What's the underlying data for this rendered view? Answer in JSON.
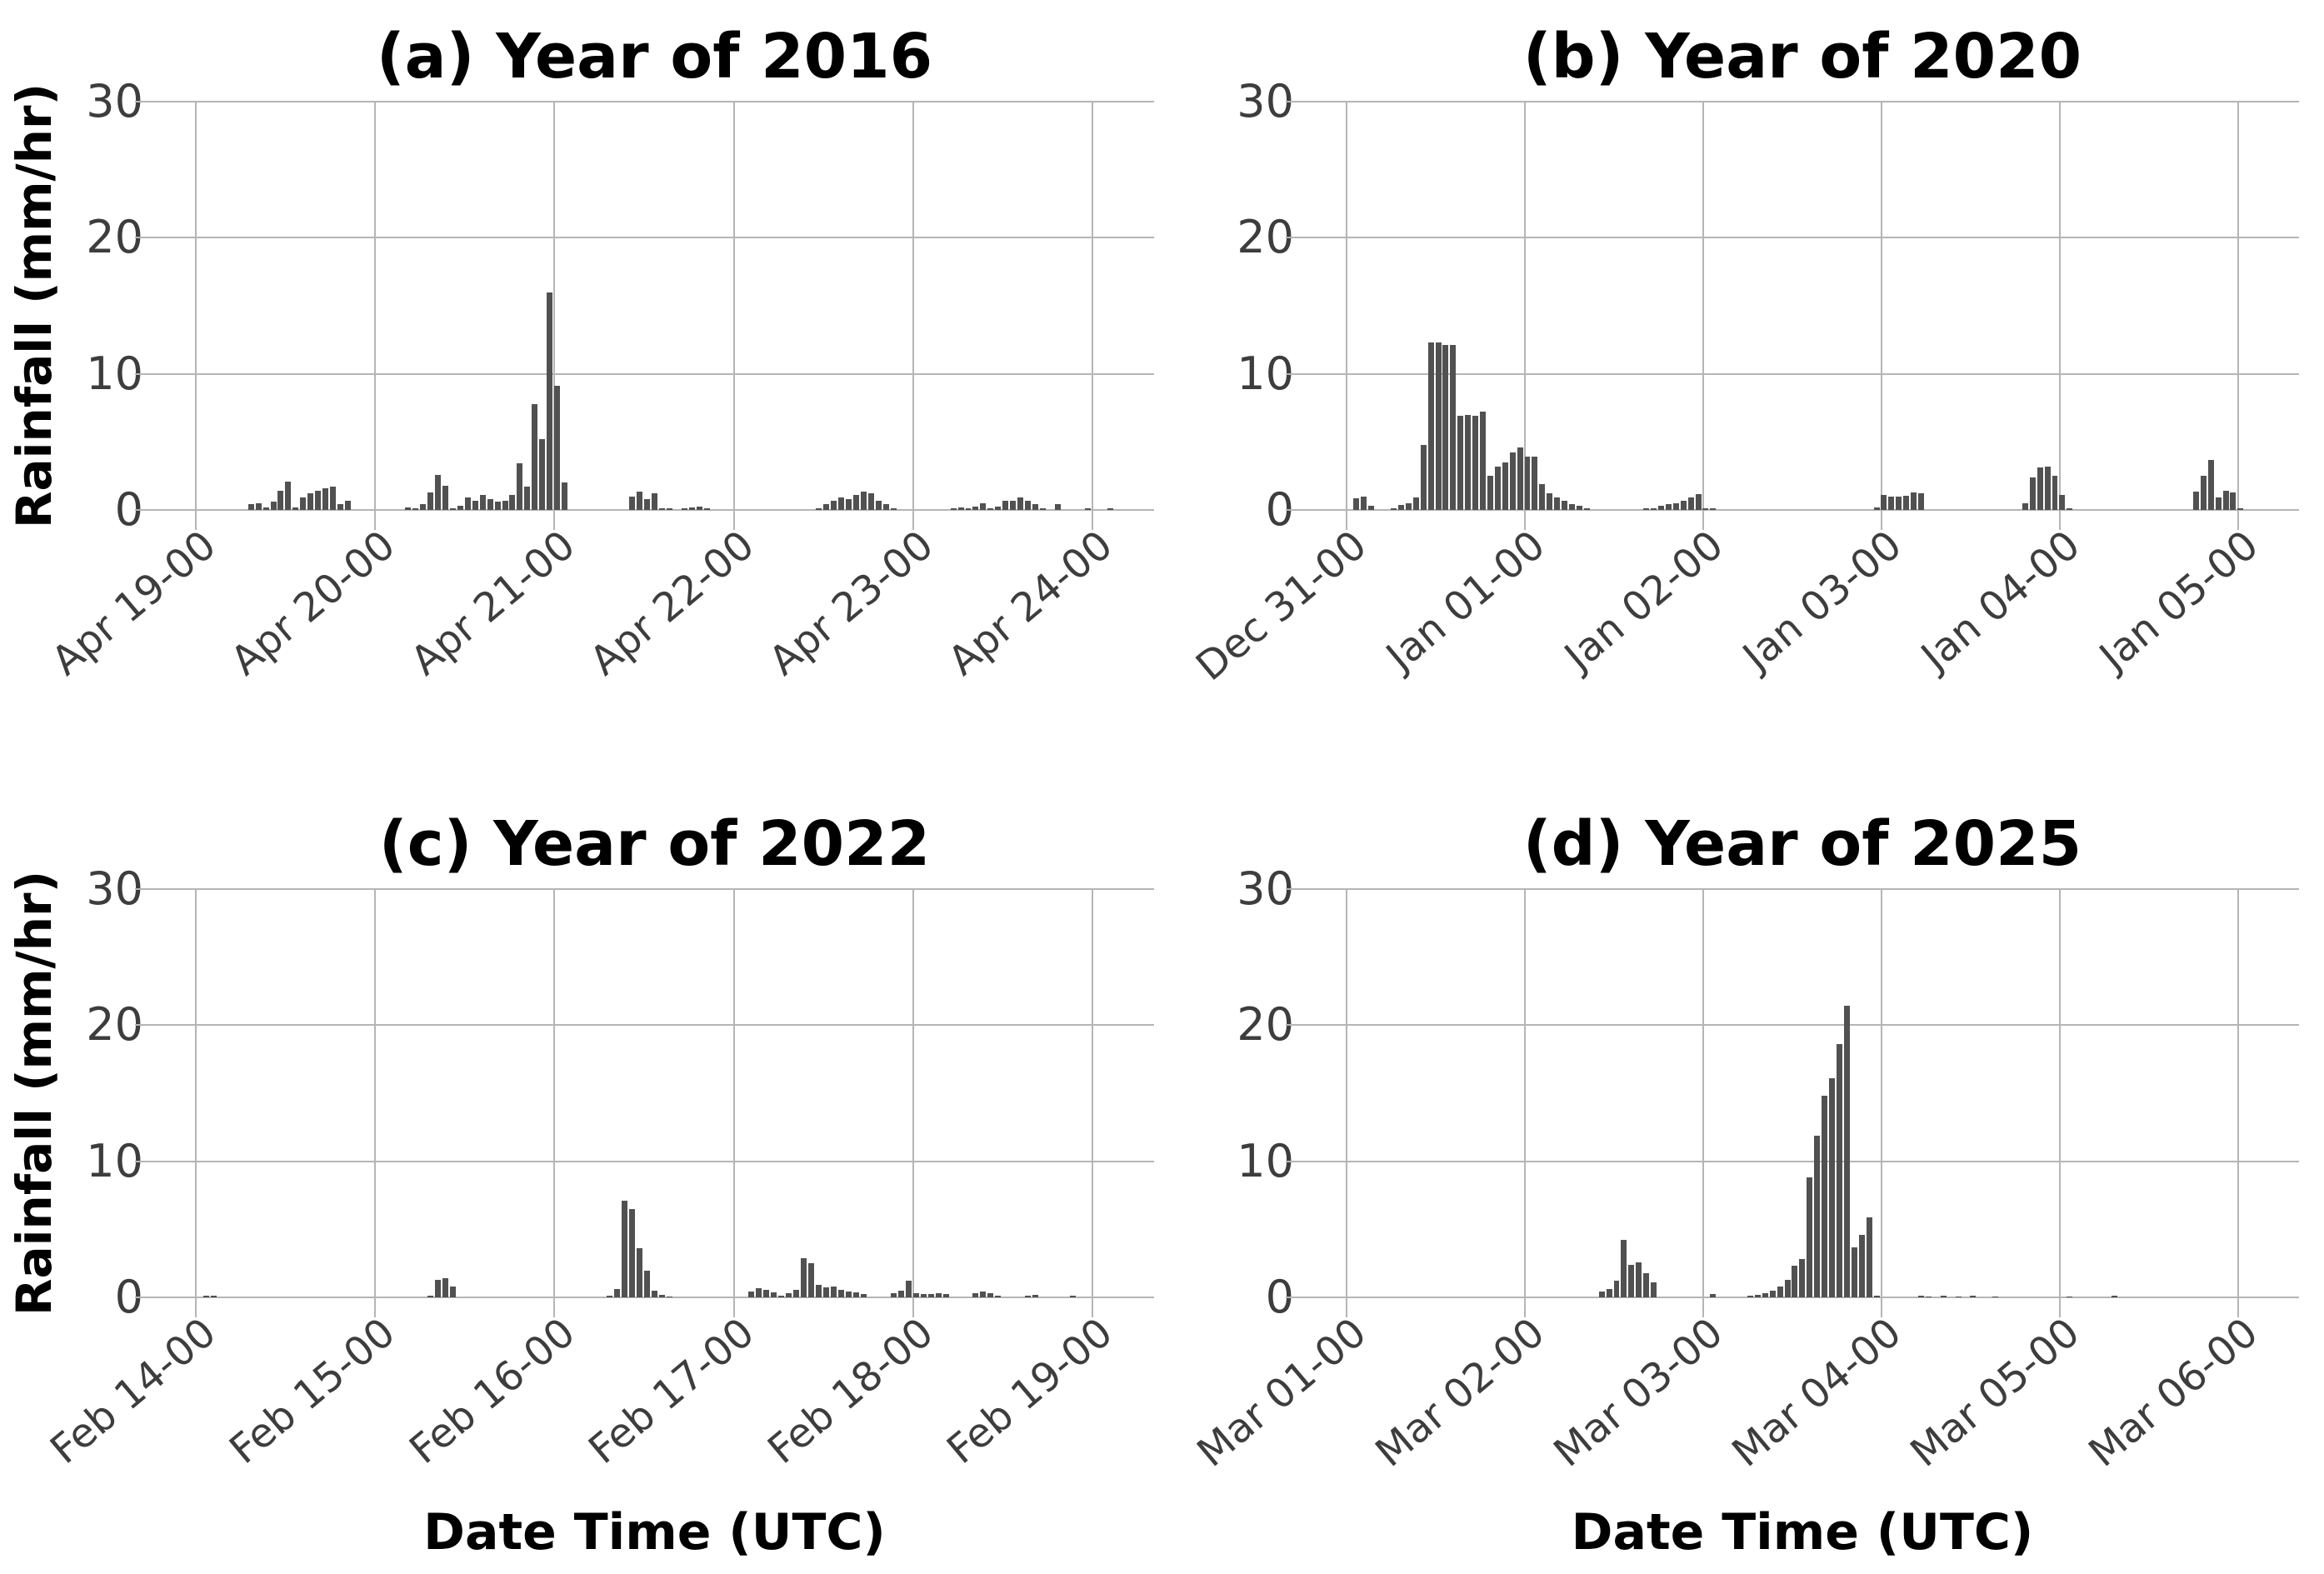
{
  "figure": {
    "background": "#ffffff",
    "bar_color": "#515151",
    "grid_color": "#b5b5b5",
    "title_color": "#000000",
    "tick_color": "#3d3d3d",
    "ylabel": "Rainfall (mm/hr)",
    "xlabel": "Date Time (UTC)",
    "yticks": [
      0,
      10,
      20,
      30
    ],
    "ylim": [
      0,
      30
    ],
    "grid": "on",
    "layout": "2x2 subplots, hourly rainfall bar charts"
  },
  "chart_data": [
    {
      "id": "a",
      "type": "bar",
      "title": "(a) Year of 2016",
      "ylim": [
        0,
        30
      ],
      "x_tick_labels": [
        "Apr 19-00",
        "Apr 20-00",
        "Apr 21-00",
        "Apr 22-00",
        "Apr 23-00",
        "Apr 24-00"
      ],
      "hours_per_tick": 24,
      "show_ylabel": true,
      "show_xlabel": false,
      "bars": [
        [
          7,
          0.4
        ],
        [
          8,
          0.5
        ],
        [
          9,
          0.2
        ],
        [
          10,
          0.6
        ],
        [
          11,
          1.4
        ],
        [
          12,
          2.1
        ],
        [
          13,
          0.2
        ],
        [
          14,
          0.9
        ],
        [
          15,
          1.2
        ],
        [
          16,
          1.4
        ],
        [
          17,
          1.6
        ],
        [
          18,
          1.7
        ],
        [
          19,
          0.4
        ],
        [
          20,
          0.7
        ],
        [
          28,
          0.2
        ],
        [
          29,
          0.15
        ],
        [
          30,
          0.45
        ],
        [
          31,
          1.3
        ],
        [
          32,
          2.6
        ],
        [
          33,
          1.8
        ],
        [
          34,
          0.15
        ],
        [
          35,
          0.3
        ],
        [
          36,
          0.9
        ],
        [
          37,
          0.65
        ],
        [
          38,
          1.1
        ],
        [
          39,
          0.8
        ],
        [
          40,
          0.6
        ],
        [
          41,
          0.7
        ],
        [
          42,
          1.1
        ],
        [
          43,
          3.4
        ],
        [
          44,
          1.7
        ],
        [
          45,
          7.8
        ],
        [
          46,
          5.2
        ],
        [
          47,
          16.0
        ],
        [
          48,
          9.1
        ],
        [
          49,
          2.0
        ],
        [
          58,
          1.0
        ],
        [
          59,
          1.35
        ],
        [
          60,
          0.8
        ],
        [
          61,
          1.2
        ],
        [
          62,
          0.15
        ],
        [
          63,
          0.1
        ],
        [
          65,
          0.15
        ],
        [
          66,
          0.2
        ],
        [
          67,
          0.25
        ],
        [
          68,
          0.1
        ],
        [
          83,
          0.1
        ],
        [
          84,
          0.4
        ],
        [
          85,
          0.7
        ],
        [
          86,
          0.9
        ],
        [
          87,
          0.8
        ],
        [
          88,
          1.1
        ],
        [
          89,
          1.35
        ],
        [
          90,
          1.2
        ],
        [
          91,
          0.7
        ],
        [
          92,
          0.45
        ],
        [
          93,
          0.15
        ],
        [
          101,
          0.15
        ],
        [
          102,
          0.2
        ],
        [
          103,
          0.1
        ],
        [
          104,
          0.25
        ],
        [
          105,
          0.5
        ],
        [
          106,
          0.15
        ],
        [
          107,
          0.25
        ],
        [
          108,
          0.65
        ],
        [
          109,
          0.7
        ],
        [
          110,
          0.9
        ],
        [
          111,
          0.65
        ],
        [
          112,
          0.45
        ],
        [
          113,
          0.1
        ],
        [
          115,
          0.45
        ],
        [
          119,
          0.15
        ],
        [
          122,
          0.1
        ]
      ]
    },
    {
      "id": "b",
      "type": "bar",
      "title": "(b) Year of 2020",
      "ylim": [
        0,
        30
      ],
      "x_tick_labels": [
        "Dec 31-00",
        "Jan 01-00",
        "Jan 02-00",
        "Jan 03-00",
        "Jan 04-00",
        "Jan 05-00"
      ],
      "hours_per_tick": 24,
      "show_ylabel": false,
      "show_xlabel": false,
      "bars": [
        [
          1,
          0.85
        ],
        [
          2,
          1.0
        ],
        [
          3,
          0.3
        ],
        [
          6,
          0.15
        ],
        [
          7,
          0.35
        ],
        [
          8,
          0.5
        ],
        [
          9,
          0.9
        ],
        [
          10,
          4.8
        ],
        [
          11,
          12.3
        ],
        [
          12,
          12.3
        ],
        [
          13,
          12.1
        ],
        [
          14,
          12.1
        ],
        [
          15,
          6.9
        ],
        [
          16,
          7.0
        ],
        [
          17,
          6.9
        ],
        [
          18,
          7.2
        ],
        [
          19,
          2.5
        ],
        [
          20,
          3.2
        ],
        [
          21,
          3.5
        ],
        [
          22,
          4.2
        ],
        [
          23,
          4.6
        ],
        [
          24,
          3.9
        ],
        [
          25,
          3.9
        ],
        [
          26,
          1.9
        ],
        [
          27,
          1.2
        ],
        [
          28,
          0.9
        ],
        [
          29,
          0.7
        ],
        [
          30,
          0.4
        ],
        [
          31,
          0.3
        ],
        [
          32,
          0.15
        ],
        [
          40,
          0.1
        ],
        [
          41,
          0.15
        ],
        [
          42,
          0.3
        ],
        [
          43,
          0.4
        ],
        [
          44,
          0.5
        ],
        [
          45,
          0.65
        ],
        [
          46,
          0.9
        ],
        [
          47,
          1.15
        ],
        [
          48,
          0.15
        ],
        [
          49,
          0.1
        ],
        [
          71,
          0.2
        ],
        [
          72,
          1.1
        ],
        [
          73,
          0.95
        ],
        [
          74,
          1.0
        ],
        [
          75,
          1.05
        ],
        [
          76,
          1.3
        ],
        [
          77,
          1.25
        ],
        [
          91,
          0.5
        ],
        [
          92,
          2.4
        ],
        [
          93,
          3.1
        ],
        [
          94,
          3.2
        ],
        [
          95,
          2.5
        ],
        [
          96,
          1.1
        ],
        [
          97,
          0.15
        ],
        [
          114,
          1.35
        ],
        [
          115,
          2.5
        ],
        [
          116,
          3.7
        ],
        [
          117,
          0.9
        ],
        [
          118,
          1.4
        ],
        [
          119,
          1.3
        ],
        [
          120,
          0.1
        ]
      ]
    },
    {
      "id": "c",
      "type": "bar",
      "title": "(c) Year of 2022",
      "ylim": [
        0,
        30
      ],
      "x_tick_labels": [
        "Feb 14-00",
        "Feb 15-00",
        "Feb 16-00",
        "Feb 17-00",
        "Feb 18-00",
        "Feb 19-00"
      ],
      "hours_per_tick": 24,
      "show_ylabel": true,
      "show_xlabel": true,
      "bars": [
        [
          1,
          0.15
        ],
        [
          2,
          0.1
        ],
        [
          31,
          0.15
        ],
        [
          32,
          1.3
        ],
        [
          33,
          1.4
        ],
        [
          34,
          0.8
        ],
        [
          55,
          0.1
        ],
        [
          56,
          0.6
        ],
        [
          57,
          7.1
        ],
        [
          58,
          6.5
        ],
        [
          59,
          3.6
        ],
        [
          60,
          1.95
        ],
        [
          61,
          0.5
        ],
        [
          62,
          0.2
        ],
        [
          63,
          0.05
        ],
        [
          74,
          0.45
        ],
        [
          75,
          0.7
        ],
        [
          76,
          0.55
        ],
        [
          77,
          0.35
        ],
        [
          78,
          0.15
        ],
        [
          79,
          0.3
        ],
        [
          80,
          0.55
        ],
        [
          81,
          2.9
        ],
        [
          82,
          2.5
        ],
        [
          83,
          0.9
        ],
        [
          84,
          0.75
        ],
        [
          85,
          0.8
        ],
        [
          86,
          0.55
        ],
        [
          87,
          0.4
        ],
        [
          88,
          0.35
        ],
        [
          89,
          0.25
        ],
        [
          93,
          0.3
        ],
        [
          94,
          0.5
        ],
        [
          95,
          1.2
        ],
        [
          96,
          0.3
        ],
        [
          97,
          0.25
        ],
        [
          98,
          0.25
        ],
        [
          99,
          0.3
        ],
        [
          100,
          0.25
        ],
        [
          104,
          0.3
        ],
        [
          105,
          0.45
        ],
        [
          106,
          0.3
        ],
        [
          107,
          0.15
        ],
        [
          111,
          0.15
        ],
        [
          112,
          0.2
        ],
        [
          117,
          0.1
        ]
      ]
    },
    {
      "id": "d",
      "type": "bar",
      "title": "(d) Year of 2025",
      "ylim": [
        0,
        30
      ],
      "x_tick_labels": [
        "Mar 01-00",
        "Mar 02-00",
        "Mar 03-00",
        "Mar 04-00",
        "Mar 05-00",
        "Mar 06-00"
      ],
      "hours_per_tick": 24,
      "show_ylabel": false,
      "show_xlabel": true,
      "bars": [
        [
          34,
          0.45
        ],
        [
          35,
          0.6
        ],
        [
          36,
          1.2
        ],
        [
          37,
          4.2
        ],
        [
          38,
          2.4
        ],
        [
          39,
          2.6
        ],
        [
          40,
          1.8
        ],
        [
          41,
          1.1
        ],
        [
          49,
          0.25
        ],
        [
          54,
          0.1
        ],
        [
          55,
          0.2
        ],
        [
          56,
          0.3
        ],
        [
          57,
          0.5
        ],
        [
          58,
          0.8
        ],
        [
          59,
          1.3
        ],
        [
          60,
          2.3
        ],
        [
          61,
          2.8
        ],
        [
          62,
          8.8
        ],
        [
          63,
          11.9
        ],
        [
          64,
          14.8
        ],
        [
          65,
          16.1
        ],
        [
          66,
          18.6
        ],
        [
          67,
          21.4
        ],
        [
          68,
          3.7
        ],
        [
          69,
          4.6
        ],
        [
          70,
          5.9
        ],
        [
          71,
          0.1
        ],
        [
          77,
          0.1
        ],
        [
          78,
          0.08
        ],
        [
          80,
          0.1
        ],
        [
          82,
          0.08
        ],
        [
          84,
          0.1
        ],
        [
          87,
          0.05
        ],
        [
          97,
          0.05
        ],
        [
          103,
          0.1
        ]
      ]
    }
  ]
}
